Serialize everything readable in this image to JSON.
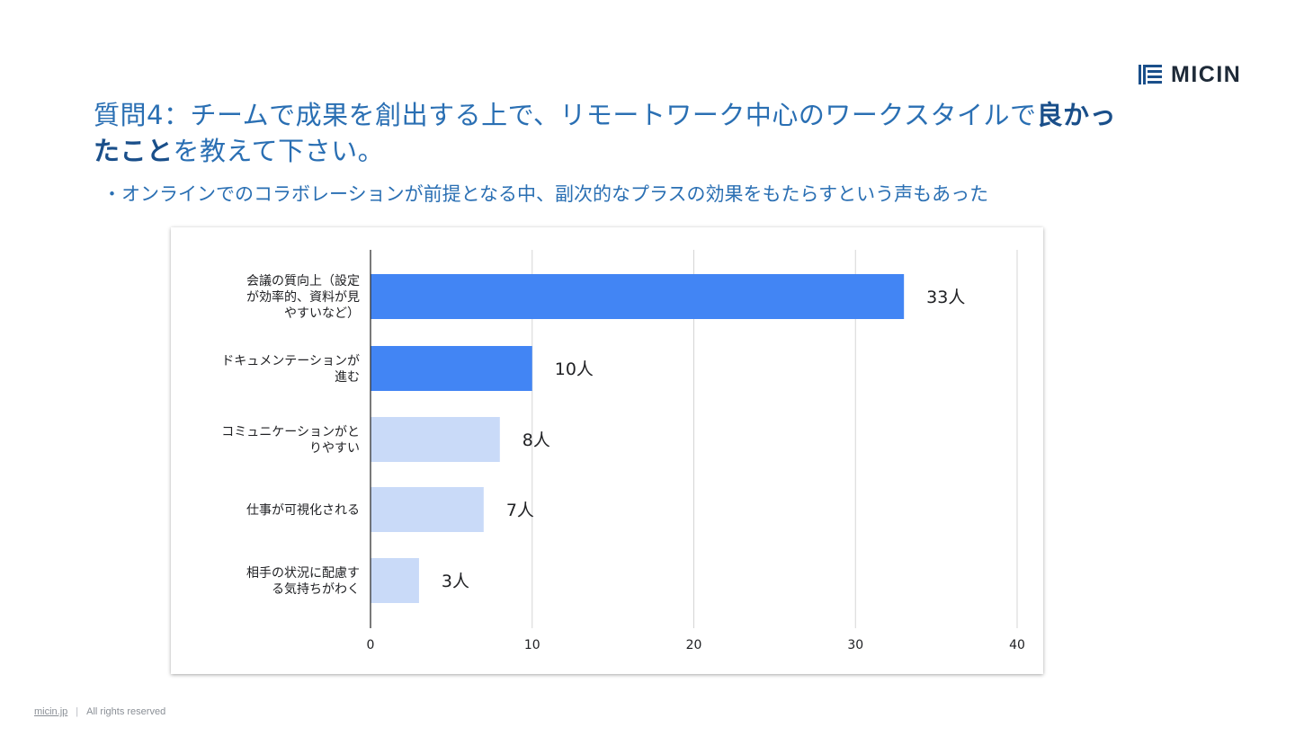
{
  "brand": {
    "name": "MICIN",
    "colors": {
      "text": "#1e2a38",
      "accent": "#1a4f8a"
    }
  },
  "title": {
    "part1": "質問4：チームで成果を創出する上で、リモートワーク中心のワークスタイルで",
    "emphasis": "良かったこと",
    "part2": "を教えて下さい。"
  },
  "bullet": "・オンラインでのコラボレーションが前提となる中、副次的なプラスの効果をもたらすという声もあった",
  "chart_data": {
    "type": "bar",
    "orientation": "horizontal",
    "categories": [
      [
        "会議の質向上（設定",
        "が効率的、資料が見",
        "やすいなど）"
      ],
      [
        "ドキュメンテーションが",
        "進む"
      ],
      [
        "コミュニケーションがと",
        "りやすい"
      ],
      [
        "仕事が可視化される"
      ],
      [
        "相手の状況に配慮す",
        "る気持ちがわく"
      ]
    ],
    "values": [
      33,
      10,
      8,
      7,
      3
    ],
    "value_labels": [
      "33人",
      "10人",
      "8人",
      "7人",
      "3人"
    ],
    "bar_colors": [
      "#4285f4",
      "#4285f4",
      "#c9daf8",
      "#c9daf8",
      "#c9daf8"
    ],
    "xlim": [
      0,
      40
    ],
    "xticks": [
      "0",
      "10",
      "20",
      "30",
      "40"
    ],
    "grid": true,
    "title": "",
    "xlabel": "",
    "ylabel": ""
  },
  "footer": {
    "site": "micin.jp",
    "separator": "|",
    "rights": "All rights reserved"
  }
}
